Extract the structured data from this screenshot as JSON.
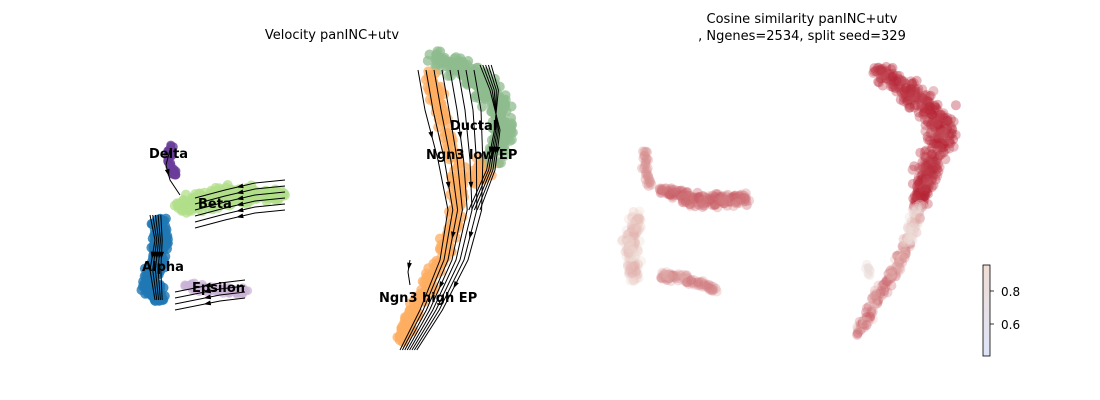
{
  "colors": {
    "Ductal": "#8fbc8f",
    "Ngn3 low EP": "#8fbc8f",
    "Ngn3 high EP": "#fdae61",
    "Beta": "#b2df8a",
    "Alpha": "#1f78b4",
    "Delta": "#6a3d9a",
    "Epsilon": "#cab2d6",
    "sim_low": "#dde4f8",
    "sim_mid": "#f0ddd4",
    "sim_high": "#b2182b"
  },
  "chart_data": [
    {
      "type": "scatter",
      "title": "Velocity panINC+utv",
      "subtitle": "",
      "xlabel": "",
      "ylabel": "",
      "grid": false,
      "legend": "on data",
      "clusters": [
        {
          "name": "Ductal"
        },
        {
          "name": "Ngn3 low EP"
        },
        {
          "name": "Ngn3 high EP"
        },
        {
          "name": "Beta"
        },
        {
          "name": "Alpha"
        },
        {
          "name": "Delta"
        },
        {
          "name": "Epsilon"
        }
      ],
      "overlay": "velocity streamlines with arrows"
    },
    {
      "type": "scatter",
      "title": "Cosine similarity panINC+utv",
      "subtitle": ", Ngenes=2534, split seed=329",
      "xlabel": "",
      "ylabel": "",
      "grid": false,
      "colormap": "coolwarm",
      "colorbar": {
        "ticks": [
          0.6,
          0.8
        ],
        "range": [
          0.4,
          0.96
        ]
      },
      "point_alpha": 0.3
    }
  ]
}
